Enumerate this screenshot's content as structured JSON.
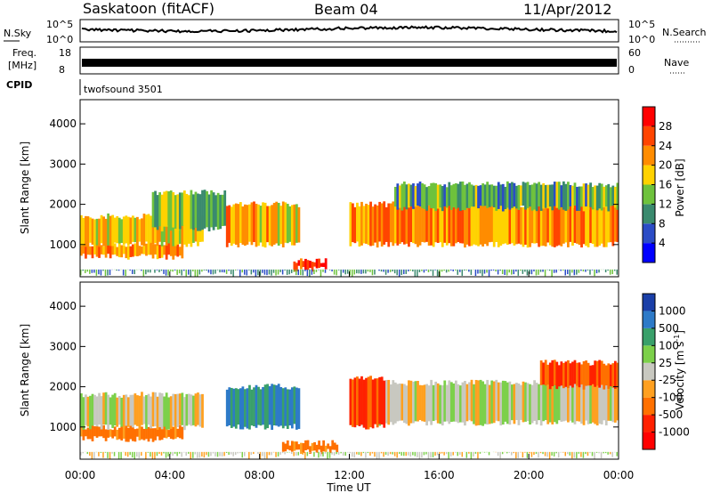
{
  "header": {
    "station": "Saskatoon (fitACF)",
    "beam": "Beam 04",
    "date": "11/Apr/2012"
  },
  "noise_panel": {
    "left_label": "N.Sky",
    "right_label": "N.Search",
    "tick_top": "10^5",
    "tick_bottom": "10^0"
  },
  "freq_panel": {
    "label_line1": "Freq.",
    "label_line2": "[MHz]",
    "left_tick_top": "18",
    "left_tick_bottom": "8",
    "right_tick_top": "60",
    "right_tick_bottom": "0",
    "right_label": "Nave"
  },
  "cpid_panel": {
    "label": "CPID",
    "program": "twofsound 3501"
  },
  "chart_data": [
    {
      "type": "heatmap",
      "name": "power",
      "ylabel": "Slant Range [km]",
      "ylim": [
        200,
        4600
      ],
      "yticks": [
        "1000",
        "2000",
        "3000",
        "4000"
      ],
      "xlim": [
        0,
        24
      ],
      "xticks": [
        "00:00",
        "04:00",
        "08:00",
        "12:00",
        "16:00",
        "20:00",
        "00:00"
      ],
      "colorbar": {
        "label": "Power [dB]",
        "ticks": [
          "4",
          "8",
          "12",
          "16",
          "20",
          "24",
          "28"
        ],
        "colors": [
          "#0000ff",
          "#2b4cc6",
          "#3a8a6e",
          "#6ec23c",
          "#ffd200",
          "#ff8c00",
          "#ff4400",
          "#ff0000"
        ]
      },
      "bands": [
        {
          "t0": 0.0,
          "t1": 4.6,
          "r0": 700,
          "r1": 1000,
          "dB": 22
        },
        {
          "t0": 0.0,
          "t1": 5.5,
          "r0": 1000,
          "r1": 1700,
          "dB": 18
        },
        {
          "t0": 3.2,
          "t1": 6.5,
          "r0": 1400,
          "r1": 2300,
          "dB": 14
        },
        {
          "t0": 6.5,
          "t1": 9.8,
          "r0": 1000,
          "r1": 2000,
          "dB": 20
        },
        {
          "t0": 9.5,
          "t1": 11.0,
          "r0": 400,
          "r1": 600,
          "dB": 28
        },
        {
          "t0": 12.0,
          "t1": 24.0,
          "r0": 1000,
          "r1": 2000,
          "dB": 22
        },
        {
          "t0": 14.0,
          "t1": 24.0,
          "r0": 1900,
          "r1": 2500,
          "dB": 12
        }
      ]
    },
    {
      "type": "heatmap",
      "name": "velocity",
      "ylabel": "Slant Range [km]",
      "xlabel": "Time UT",
      "ylim": [
        200,
        4600
      ],
      "yticks": [
        "1000",
        "2000",
        "3000",
        "4000"
      ],
      "xlim": [
        0,
        24
      ],
      "xticks": [
        "00:00",
        "04:00",
        "08:00",
        "12:00",
        "16:00",
        "20:00",
        "00:00"
      ],
      "colorbar": {
        "label": "Velocity [m s",
        "label_sup": "-1",
        "label_close": "]",
        "ticks": [
          "1000",
          "500",
          "100",
          "25",
          "-25",
          "-100",
          "-500",
          "-1000"
        ],
        "colors": [
          "#1a3fa8",
          "#2d7ac8",
          "#39a06a",
          "#7cd04a",
          "#c8c8c0",
          "#ffa020",
          "#ff7000",
          "#ff2000",
          "#ff0000"
        ]
      },
      "bands": [
        {
          "t0": 0.0,
          "t1": 4.6,
          "r0": 700,
          "r1": 1000,
          "v": -100
        },
        {
          "t0": 0.0,
          "t1": 5.5,
          "r0": 1000,
          "r1": 1800,
          "v": 0
        },
        {
          "t0": 6.5,
          "t1": 9.8,
          "r0": 1000,
          "r1": 2000,
          "v": 300
        },
        {
          "t0": 9.0,
          "t1": 11.5,
          "r0": 400,
          "r1": 600,
          "v": -100
        },
        {
          "t0": 12.0,
          "t1": 24.0,
          "r0": 1100,
          "r1": 2100,
          "v": 0
        },
        {
          "t0": 12.0,
          "t1": 13.6,
          "r0": 1000,
          "r1": 2200,
          "v": -300
        },
        {
          "t0": 20.5,
          "t1": 24.0,
          "r0": 2000,
          "r1": 2600,
          "v": -300
        }
      ]
    }
  ]
}
